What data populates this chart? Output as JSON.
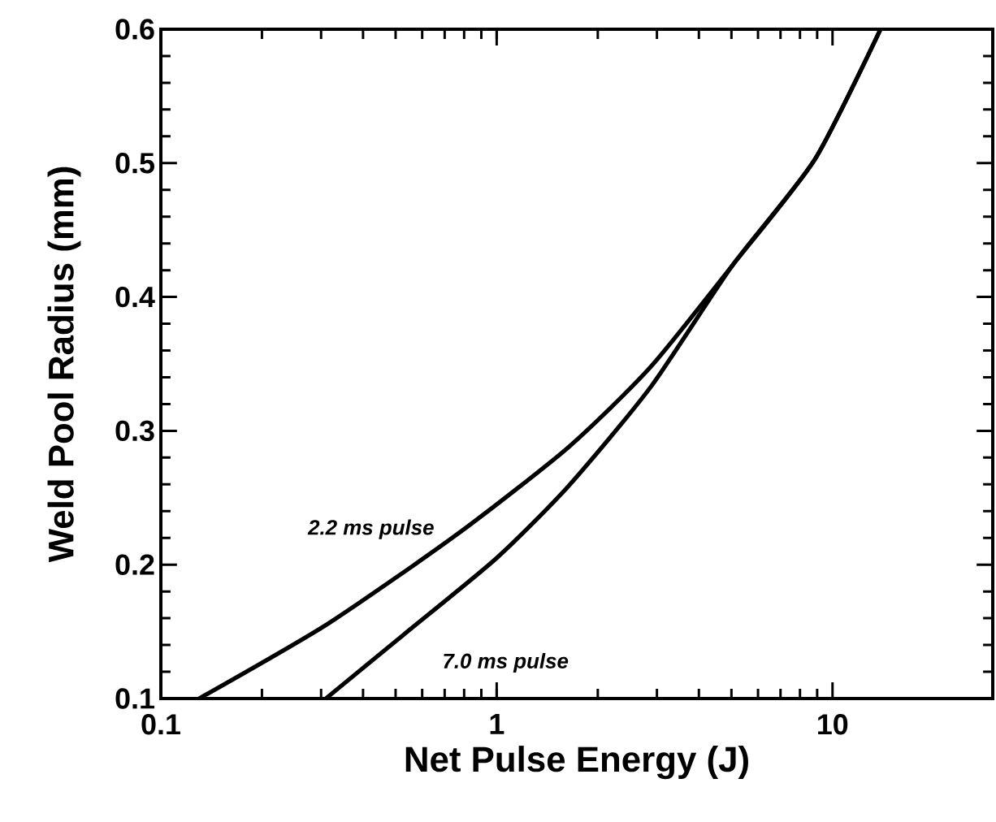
{
  "chart_data": {
    "type": "line",
    "xlabel": "Net Pulse Energy  (J)",
    "ylabel": "Weld Pool Radius  (mm)",
    "log": "x",
    "xlim": [
      0.1,
      30
    ],
    "xticks": [
      0.1,
      1,
      10
    ],
    "ylim": [
      0.1,
      0.6
    ],
    "yticks": [
      0.1,
      0.2,
      0.3,
      0.4,
      0.5,
      0.6
    ],
    "grid": false,
    "marker": "none",
    "line_style": "solid",
    "series": [
      {
        "name": "*2.2 ms pulse*",
        "color": "#000000",
        "x": [
          0.13,
          0.315,
          0.775,
          1.64,
          2.88,
          5.05,
          8.87,
          13.9
        ],
        "values": [
          0.1,
          0.156,
          0.224,
          0.288,
          0.348,
          0.424,
          0.503,
          0.6
        ]
      },
      {
        "name": "*7.0 ms pulse*",
        "color": "#000000",
        "x": [
          0.31,
          0.53,
          1.0,
          1.64,
          2.88,
          5.05,
          8.87,
          13.9
        ],
        "values": [
          0.1,
          0.148,
          0.205,
          0.259,
          0.333,
          0.424,
          0.503,
          0.6
        ]
      }
    ]
  }
}
